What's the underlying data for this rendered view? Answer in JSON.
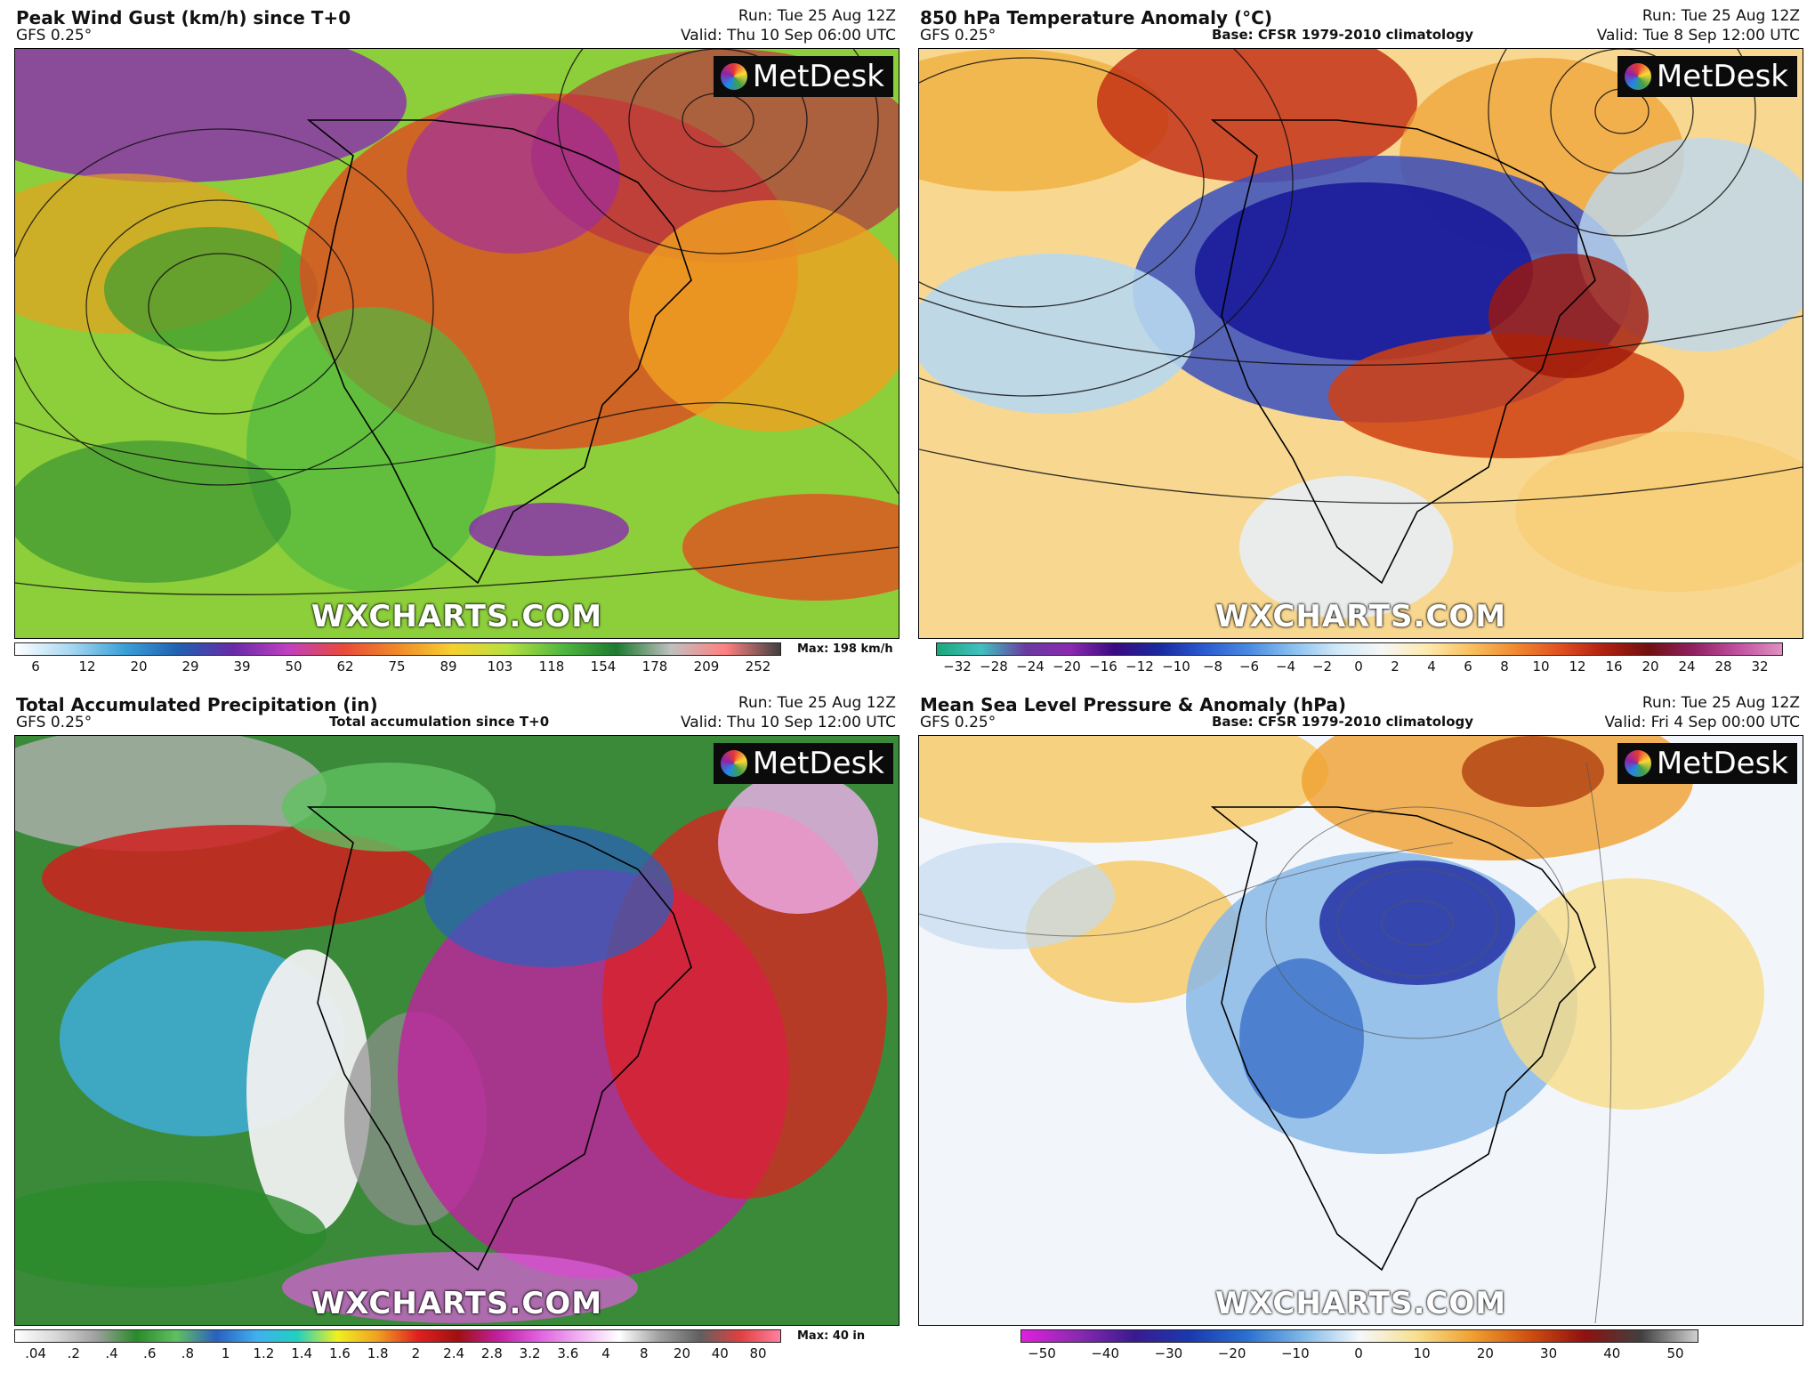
{
  "panels": [
    {
      "title": "Peak Wind Gust (km/h) since T+0",
      "model": "GFS 0.25°",
      "run": "Run: Tue 25 Aug 12Z",
      "valid": "Valid: Thu 10 Sep 06:00 UTC",
      "subtitle": "",
      "logo": "MetDesk",
      "brand": "WXCHARTS.COM",
      "colorbar": {
        "ticks": [
          "6",
          "12",
          "20",
          "29",
          "39",
          "50",
          "62",
          "75",
          "89",
          "103",
          "118",
          "154",
          "178",
          "209",
          "252"
        ],
        "max_label": "Max: 198 km/h",
        "colors": [
          "#ffffff",
          "#a8d8f0",
          "#3aa0d8",
          "#2060b0",
          "#6a2aa8",
          "#c040c0",
          "#e84a3a",
          "#f08a2a",
          "#f6d030",
          "#b8e040",
          "#50b840",
          "#1e7a30",
          "#c0c0c0",
          "#ff8080",
          "#404040"
        ]
      }
    },
    {
      "title": "850 hPa Temperature Anomaly (°C)",
      "model": "GFS 0.25°",
      "run": "Run: Tue 25 Aug 12Z",
      "valid": "Valid: Tue 8 Sep 12:00 UTC",
      "subtitle": "Base: CFSR 1979-2010 climatology",
      "logo": "MetDesk",
      "brand": "WXCHARTS.COM",
      "colorbar": {
        "ticks": [
          "−32",
          "−28",
          "−24",
          "−20",
          "−16",
          "−12",
          "−10",
          "−8",
          "−6",
          "−4",
          "−2",
          "0",
          "2",
          "4",
          "6",
          "8",
          "10",
          "12",
          "16",
          "20",
          "24",
          "28",
          "32"
        ],
        "max_label": "",
        "colors": [
          "#1aa87a",
          "#40c0c0",
          "#6a3aa0",
          "#8a2ab0",
          "#3a0a80",
          "#1a2aa0",
          "#2a5ad0",
          "#4a8ae0",
          "#8ac0f0",
          "#d0e8f8",
          "#f6f6f6",
          "#fdeab0",
          "#f8c060",
          "#f08a30",
          "#e05020",
          "#b02010",
          "#701010",
          "#902060",
          "#c050a0",
          "#e090c0"
        ]
      }
    },
    {
      "title": "Total Accumulated Precipitation (in)",
      "model": "GFS 0.25°",
      "run": "Run: Tue 25 Aug 12Z",
      "valid": "Valid: Thu 10 Sep 12:00 UTC",
      "subtitle": "Total accumulation since T+0",
      "logo": "MetDesk",
      "brand": "WXCHARTS.COM",
      "colorbar": {
        "ticks": [
          ".04",
          ".2",
          ".4",
          ".6",
          ".8",
          "1",
          "1.2",
          "1.4",
          "1.6",
          "1.8",
          "2",
          "2.4",
          "2.8",
          "3.2",
          "3.6",
          "4",
          "8",
          "20",
          "40",
          "80"
        ],
        "max_label": "Max: 40 in",
        "colors": [
          "#ffffff",
          "#d8d8d8",
          "#a0a0a0",
          "#2a8a2a",
          "#60c060",
          "#2a60c0",
          "#40b0f0",
          "#20d0c0",
          "#f0f020",
          "#f0a020",
          "#e02020",
          "#a01010",
          "#c020a0",
          "#e060e0",
          "#f0b0f0",
          "#ffffff",
          "#a0a0a0",
          "#606060",
          "#e04040",
          "#ff80a0"
        ]
      }
    },
    {
      "title": "Mean Sea Level Pressure & Anomaly (hPa)",
      "model": "GFS 0.25°",
      "run": "Run: Tue 25 Aug 12Z",
      "valid": "Valid: Fri 4 Sep 00:00 UTC",
      "subtitle": "Base: CFSR 1979-2010 climatology",
      "logo": "MetDesk",
      "brand": "WXCHARTS.COM",
      "colorbar": {
        "ticks": [
          "−50",
          "−40",
          "−30",
          "−20",
          "−10",
          "0",
          "10",
          "20",
          "30",
          "40",
          "50"
        ],
        "max_label": "",
        "colors": [
          "#e020e0",
          "#8a2ab0",
          "#3a1a90",
          "#1a3ab0",
          "#2a70d0",
          "#80b8e8",
          "#f4f8fb",
          "#f8e090",
          "#f0a030",
          "#d05010",
          "#901010",
          "#404040",
          "#d0d0d0"
        ]
      }
    }
  ]
}
